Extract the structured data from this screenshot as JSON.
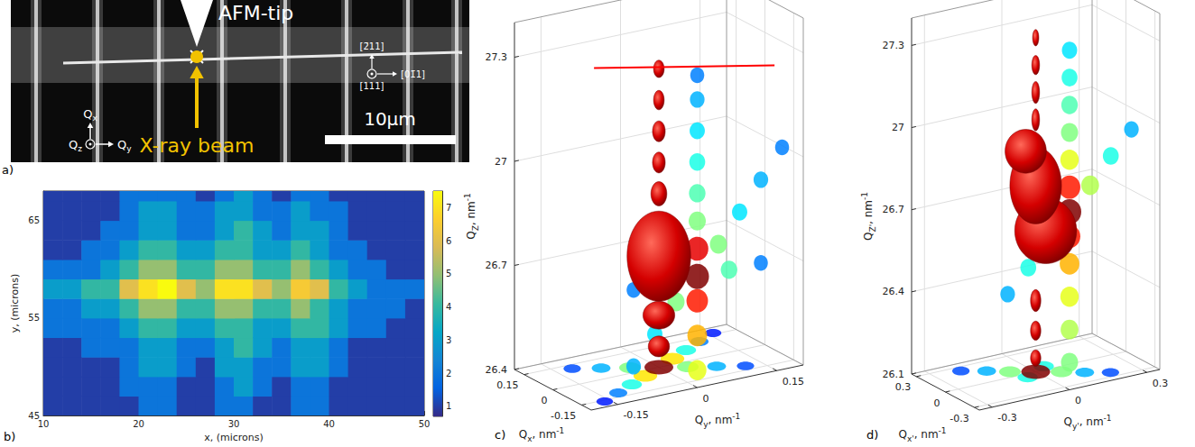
{
  "image_panel": {
    "annotations": {
      "panel": "a)",
      "afm_tip": "AFM-tip",
      "x_ray_beam": "X-ray beam",
      "scale_bar": "10μm",
      "directions": {
        "up": "[2̄11]",
        "out": "[111]",
        "right": "[01̄1]"
      },
      "q_axes": {
        "up": {
          "base": "Q",
          "sub": "x"
        },
        "out": {
          "base": "Q",
          "sub": "z"
        },
        "right": {
          "base": "Q",
          "sub": "y"
        }
      }
    }
  },
  "chart_data": [
    {
      "type": "heatmap",
      "annotations": {
        "panel": "b)"
      },
      "x_label": "x, (microns)",
      "y_label": "y, (microns)",
      "xlim": [
        10,
        50
      ],
      "ylim": [
        45,
        68
      ],
      "xticks": [
        10,
        20,
        30,
        40,
        50
      ],
      "yticks": [
        45,
        55,
        65
      ],
      "x_edges": [
        10,
        12,
        14,
        16,
        18,
        20,
        22,
        24,
        26,
        28,
        30,
        32,
        34,
        36,
        38,
        40,
        42,
        44,
        46,
        48,
        50
      ],
      "y_edges": [
        45,
        47,
        49,
        51,
        53,
        55,
        57,
        59,
        61,
        63,
        65,
        67,
        68
      ],
      "cells": [
        [
          1,
          1,
          1,
          1,
          1,
          2,
          2,
          1,
          1,
          2,
          2,
          1,
          1,
          2,
          2,
          1,
          1,
          1,
          1,
          1
        ],
        [
          1,
          1,
          1,
          1,
          2,
          2,
          2,
          1,
          1,
          2,
          3,
          2,
          1,
          2,
          2,
          1,
          1,
          1,
          1,
          1
        ],
        [
          1,
          1,
          1,
          1,
          2,
          3,
          3,
          2,
          1,
          3,
          3,
          2,
          2,
          3,
          3,
          2,
          1,
          1,
          1,
          1
        ],
        [
          1,
          1,
          2,
          2,
          2,
          3,
          3,
          2,
          2,
          3,
          4,
          3,
          2,
          3,
          3,
          2,
          1,
          1,
          1,
          1
        ],
        [
          2,
          2,
          2,
          2,
          3,
          4,
          4,
          3,
          3,
          4,
          4,
          3,
          3,
          4,
          4,
          3,
          2,
          2,
          1,
          1
        ],
        [
          2,
          2,
          3,
          3,
          4,
          5,
          5,
          4,
          4,
          5,
          5,
          4,
          4,
          5,
          4,
          3,
          2,
          2,
          2,
          1
        ],
        [
          3,
          3,
          4,
          4,
          6,
          7,
          7.5,
          6,
          5,
          7,
          7,
          6,
          5,
          6.5,
          6,
          4,
          3,
          2,
          2,
          2
        ],
        [
          2,
          2,
          2,
          3,
          4,
          5,
          5,
          4,
          4,
          5,
          5,
          4,
          4,
          5,
          4,
          3,
          2,
          2,
          1,
          1
        ],
        [
          1,
          1,
          2,
          2,
          3,
          4,
          4,
          3,
          3,
          4,
          4,
          3,
          3,
          4,
          3,
          2,
          2,
          1,
          1,
          1
        ],
        [
          1,
          1,
          1,
          2,
          2,
          3,
          3,
          2,
          2,
          3,
          4,
          3,
          2,
          3,
          3,
          2,
          1,
          1,
          1,
          1
        ],
        [
          1,
          1,
          1,
          1,
          2,
          3,
          3,
          2,
          2,
          3,
          3,
          2,
          2,
          3,
          2,
          2,
          1,
          1,
          1,
          1
        ],
        [
          1,
          1,
          1,
          1,
          2,
          2,
          2,
          2,
          1,
          2,
          3,
          2,
          1,
          2,
          2,
          1,
          1,
          1,
          1,
          1
        ]
      ],
      "colorbar": {
        "range": [
          0.7,
          7.5
        ],
        "ticks": [
          1,
          2,
          3,
          4,
          5,
          6,
          7
        ]
      }
    },
    {
      "type": "scatter3d",
      "annotations": {
        "panel": "c)"
      },
      "x_label": {
        "base": "Q",
        "sub": "x",
        "text": ", nm",
        "sup": "-1"
      },
      "y_label": {
        "base": "Q",
        "sub": "y",
        "text": ", nm",
        "sup": "-1"
      },
      "z_label": {
        "base": "Q",
        "sub": "Z",
        "text": ", nm",
        "sup": "-1"
      },
      "xlim": [
        -0.2,
        0.2
      ],
      "ylim": [
        -0.2,
        0.2
      ],
      "zlim": [
        26.4,
        27.4
      ],
      "xticks": [
        -0.15,
        0,
        0.15
      ],
      "yticks": [
        -0.15,
        0,
        0.15
      ],
      "zticks": [
        26.4,
        26.7,
        27,
        27.3
      ],
      "qx_qy_projection": [
        [
          0.16,
          0.16,
          0.15
        ],
        [
          -0.16,
          -0.16,
          0.15
        ],
        [
          0.12,
          -0.12,
          0.2
        ],
        [
          -0.12,
          0.12,
          0.2
        ],
        [
          0.12,
          0.12,
          0.25
        ],
        [
          -0.12,
          -0.12,
          0.25
        ],
        [
          0.08,
          -0.08,
          0.3
        ],
        [
          -0.08,
          0.08,
          0.3
        ],
        [
          0.08,
          0.08,
          0.4
        ],
        [
          -0.08,
          -0.08,
          0.4
        ],
        [
          0.04,
          -0.04,
          0.5
        ],
        [
          -0.04,
          0.04,
          0.5
        ],
        [
          0.04,
          0.04,
          0.65
        ],
        [
          -0.04,
          -0.04,
          0.65
        ],
        [
          0,
          0,
          1.0
        ]
      ],
      "qy_qz_projection": [
        [
          0.16,
          27.04,
          0.25
        ],
        [
          -0.12,
          26.5,
          0.3
        ],
        [
          0.12,
          26.96,
          0.3
        ],
        [
          -0.12,
          26.72,
          0.25
        ],
        [
          0.12,
          26.72,
          0.25
        ],
        [
          -0.08,
          26.58,
          0.35
        ],
        [
          0.08,
          26.88,
          0.35
        ],
        [
          0,
          27.3,
          0.25
        ],
        [
          0,
          27.23,
          0.3
        ],
        [
          0,
          27.14,
          0.35
        ],
        [
          0,
          27.05,
          0.4
        ],
        [
          0,
          26.96,
          0.45
        ],
        [
          -0.06,
          26.72,
          0.45
        ],
        [
          0.06,
          26.72,
          0.45
        ],
        [
          -0.04,
          26.66,
          0.5
        ],
        [
          0.04,
          26.8,
          0.5
        ],
        [
          0,
          26.88,
          0.5
        ],
        [
          0,
          26.45,
          0.6
        ],
        [
          0,
          26.55,
          0.7
        ],
        [
          0,
          26.65,
          0.85
        ],
        [
          0,
          26.8,
          0.9
        ],
        [
          0,
          26.72,
          1.0
        ]
      ],
      "isosurface": {
        "color": "#d40000",
        "blobs": [
          [
            0,
            0,
            26.46,
            0.02,
            0.03
          ],
          [
            0,
            0,
            26.55,
            0.03,
            0.04
          ],
          [
            0,
            0,
            26.72,
            0.06,
            0.13
          ],
          [
            0,
            0,
            26.9,
            0.015,
            0.035
          ],
          [
            0,
            0,
            26.99,
            0.012,
            0.03
          ],
          [
            0,
            0,
            27.08,
            0.012,
            0.03
          ],
          [
            0,
            0,
            27.17,
            0.01,
            0.028
          ],
          [
            0,
            0,
            27.26,
            0.01,
            0.025
          ]
        ]
      },
      "line_segment": {
        "color": "#ff0000",
        "points": [
          [
            0.2,
            -0.05,
            27.22
          ],
          [
            -0.05,
            0.2,
            27.22
          ]
        ]
      }
    },
    {
      "type": "scatter3d",
      "annotations": {
        "panel": "d)"
      },
      "x_label": {
        "base": "Q",
        "sub": "x'",
        "text": ", nm",
        "sup": "-1"
      },
      "y_label": {
        "base": "Q",
        "sub": "y'",
        "text": ", nm",
        "sup": "-1"
      },
      "z_label": {
        "base": "Q",
        "sub": "Z'",
        "text": ", nm",
        "sup": "-1"
      },
      "xlim": [
        -0.35,
        0.35
      ],
      "ylim": [
        -0.35,
        0.35
      ],
      "zlim": [
        26.1,
        27.4
      ],
      "xticks": [
        -0.3,
        0,
        0.3
      ],
      "yticks": [
        -0.3,
        0,
        0.3
      ],
      "zticks": [
        26.1,
        26.4,
        26.7,
        27,
        27.3
      ],
      "qx_qy_projection": [
        [
          -0.24,
          0.2,
          0.2
        ],
        [
          0.24,
          -0.2,
          0.2
        ],
        [
          -0.16,
          0.13,
          0.3
        ],
        [
          0.16,
          -0.13,
          0.3
        ],
        [
          0.05,
          0.05,
          0.4
        ],
        [
          -0.05,
          -0.05,
          0.4
        ],
        [
          -0.08,
          0.07,
          0.5
        ],
        [
          0.08,
          -0.07,
          0.5
        ],
        [
          0,
          0,
          1.0
        ]
      ],
      "qy_qz_projection": [
        [
          -0.24,
          26.5,
          0.3
        ],
        [
          0.24,
          27.0,
          0.3
        ],
        [
          -0.16,
          26.58,
          0.4
        ],
        [
          0.16,
          26.92,
          0.4
        ],
        [
          -0.08,
          26.67,
          0.55
        ],
        [
          0.08,
          26.83,
          0.55
        ],
        [
          0,
          27.34,
          0.35
        ],
        [
          0,
          27.24,
          0.4
        ],
        [
          0,
          27.14,
          0.45
        ],
        [
          0,
          27.04,
          0.5
        ],
        [
          0,
          26.2,
          0.5
        ],
        [
          0,
          26.32,
          0.55
        ],
        [
          0,
          26.44,
          0.6
        ],
        [
          0,
          26.94,
          0.6
        ],
        [
          0,
          26.56,
          0.7
        ],
        [
          0,
          26.66,
          0.85
        ],
        [
          0,
          26.84,
          0.85
        ],
        [
          0,
          26.75,
          1.0
        ]
      ],
      "isosurface": {
        "color": "#d40000",
        "blobs": [
          [
            0,
            0,
            26.15,
            0.02,
            0.03
          ],
          [
            0,
            0,
            26.25,
            0.02,
            0.035
          ],
          [
            0,
            0,
            26.36,
            0.02,
            0.04
          ],
          [
            -0.05,
            0.02,
            26.62,
            0.12,
            0.12
          ],
          [
            0,
            0,
            26.78,
            0.1,
            0.14
          ],
          [
            0.05,
            -0.02,
            26.9,
            0.08,
            0.08
          ],
          [
            0,
            0,
            27.02,
            0.015,
            0.04
          ],
          [
            0,
            0,
            27.12,
            0.015,
            0.04
          ],
          [
            0,
            0,
            27.22,
            0.015,
            0.035
          ],
          [
            0,
            0,
            27.32,
            0.012,
            0.03
          ]
        ]
      }
    }
  ]
}
